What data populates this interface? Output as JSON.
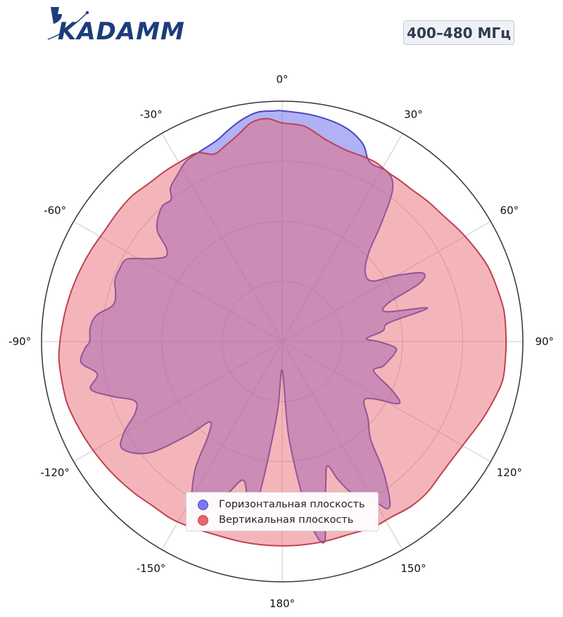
{
  "header": {
    "logo_text": "KADAMM",
    "badge": "400–480 МГц"
  },
  "colors": {
    "horizontal": "#6a6aee",
    "horizontal_line": "#4a46c0",
    "vertical": "#e8646e",
    "vertical_line": "#c04050",
    "logo": "#1c3d7a"
  },
  "chart_data": {
    "type": "polar-area",
    "angle_direction": "clockwise",
    "zero_location": "top",
    "angle_unit": "deg",
    "angle_ticks": [
      0,
      30,
      60,
      90,
      120,
      150,
      180,
      -150,
      -120,
      -90,
      -60,
      -30
    ],
    "angle_tick_labels": [
      "0°",
      "30°",
      "60°",
      "90°",
      "120°",
      "150°",
      "180°",
      "-150°",
      "-120°",
      "-90°",
      "-60°",
      "-30°"
    ],
    "radial_gridlines": 4,
    "rlim": [
      0,
      1
    ],
    "grid": true,
    "legend_position": "bottom-center",
    "series": [
      {
        "name": "Горизонтальная плоскость",
        "points": [
          [
            0,
            0.96
          ],
          [
            8,
            0.95
          ],
          [
            16,
            0.93
          ],
          [
            22,
            0.89
          ],
          [
            26,
            0.83
          ],
          [
            32,
            0.83
          ],
          [
            36,
            0.78
          ],
          [
            40,
            0.64
          ],
          [
            44,
            0.52
          ],
          [
            50,
            0.45
          ],
          [
            56,
            0.45
          ],
          [
            60,
            0.55
          ],
          [
            64,
            0.65
          ],
          [
            67,
            0.62
          ],
          [
            70,
            0.47
          ],
          [
            74,
            0.45
          ],
          [
            77,
            0.62
          ],
          [
            80,
            0.45
          ],
          [
            84,
            0.42
          ],
          [
            88,
            0.35
          ],
          [
            90,
            0.4
          ],
          [
            93,
            0.47
          ],
          [
            96,
            0.47
          ],
          [
            100,
            0.45
          ],
          [
            104,
            0.43
          ],
          [
            108,
            0.4
          ],
          [
            114,
            0.5
          ],
          [
            118,
            0.55
          ],
          [
            122,
            0.45
          ],
          [
            126,
            0.42
          ],
          [
            132,
            0.48
          ],
          [
            138,
            0.55
          ],
          [
            142,
            0.68
          ],
          [
            146,
            0.8
          ],
          [
            148,
            0.82
          ],
          [
            150,
            0.77
          ],
          [
            155,
            0.7
          ],
          [
            158,
            0.62
          ],
          [
            160,
            0.55
          ],
          [
            163,
            0.62
          ],
          [
            166,
            0.74
          ],
          [
            168,
            0.85
          ],
          [
            170,
            0.82
          ],
          [
            172,
            0.7
          ],
          [
            176,
            0.4
          ],
          [
            180,
            0.12
          ],
          [
            184,
            0.3
          ],
          [
            188,
            0.6
          ],
          [
            190,
            0.74
          ],
          [
            193,
            0.65
          ],
          [
            196,
            0.6
          ],
          [
            200,
            0.68
          ],
          [
            205,
            0.8
          ],
          [
            208,
            0.8
          ],
          [
            214,
            0.65
          ],
          [
            218,
            0.5
          ],
          [
            222,
            0.45
          ],
          [
            225,
            0.55
          ],
          [
            230,
            0.72
          ],
          [
            236,
            0.8
          ],
          [
            240,
            0.76
          ],
          [
            244,
            0.68
          ],
          [
            248,
            0.66
          ],
          [
            252,
            0.74
          ],
          [
            256,
            0.82
          ],
          [
            260,
            0.78
          ],
          [
            264,
            0.84
          ],
          [
            268,
            0.82
          ],
          [
            270,
            0.8
          ],
          [
            274,
            0.8
          ],
          [
            278,
            0.78
          ],
          [
            282,
            0.72
          ],
          [
            286,
            0.72
          ],
          [
            290,
            0.74
          ],
          [
            294,
            0.74
          ],
          [
            298,
            0.73
          ],
          [
            302,
            0.65
          ],
          [
            306,
            0.6
          ],
          [
            309,
            0.62
          ],
          [
            312,
            0.7
          ],
          [
            318,
            0.75
          ],
          [
            322,
            0.75
          ],
          [
            324,
            0.79
          ],
          [
            328,
            0.82
          ],
          [
            332,
            0.85
          ],
          [
            336,
            0.86
          ],
          [
            342,
            0.88
          ],
          [
            346,
            0.91
          ],
          [
            350,
            0.94
          ],
          [
            354,
            0.96
          ],
          [
            358,
            0.96
          ]
        ]
      },
      {
        "name": "Вертикальная плоскость",
        "points": [
          [
            0,
            0.91
          ],
          [
            6,
            0.9
          ],
          [
            12,
            0.86
          ],
          [
            18,
            0.84
          ],
          [
            24,
            0.84
          ],
          [
            28,
            0.84
          ],
          [
            32,
            0.83
          ],
          [
            36,
            0.83
          ],
          [
            40,
            0.83
          ],
          [
            46,
            0.84
          ],
          [
            52,
            0.85
          ],
          [
            58,
            0.87
          ],
          [
            64,
            0.89
          ],
          [
            70,
            0.91
          ],
          [
            76,
            0.92
          ],
          [
            82,
            0.93
          ],
          [
            88,
            0.93
          ],
          [
            94,
            0.93
          ],
          [
            100,
            0.93
          ],
          [
            106,
            0.91
          ],
          [
            112,
            0.89
          ],
          [
            118,
            0.87
          ],
          [
            124,
            0.86
          ],
          [
            130,
            0.86
          ],
          [
            136,
            0.87
          ],
          [
            142,
            0.87
          ],
          [
            148,
            0.86
          ],
          [
            154,
            0.86
          ],
          [
            160,
            0.85
          ],
          [
            168,
            0.85
          ],
          [
            174,
            0.85
          ],
          [
            180,
            0.85
          ],
          [
            186,
            0.85
          ],
          [
            192,
            0.85
          ],
          [
            198,
            0.85
          ],
          [
            206,
            0.86
          ],
          [
            212,
            0.87
          ],
          [
            218,
            0.87
          ],
          [
            224,
            0.88
          ],
          [
            230,
            0.89
          ],
          [
            236,
            0.9
          ],
          [
            242,
            0.91
          ],
          [
            248,
            0.92
          ],
          [
            254,
            0.93
          ],
          [
            260,
            0.93
          ],
          [
            266,
            0.93
          ],
          [
            272,
            0.92
          ],
          [
            278,
            0.91
          ],
          [
            284,
            0.9
          ],
          [
            290,
            0.89
          ],
          [
            296,
            0.88
          ],
          [
            302,
            0.87
          ],
          [
            308,
            0.87
          ],
          [
            314,
            0.87
          ],
          [
            320,
            0.86
          ],
          [
            326,
            0.86
          ],
          [
            332,
            0.86
          ],
          [
            336,
            0.86
          ],
          [
            340,
            0.83
          ],
          [
            344,
            0.85
          ],
          [
            348,
            0.88
          ],
          [
            352,
            0.92
          ],
          [
            356,
            0.93
          ]
        ]
      }
    ]
  },
  "legend": {
    "horizontal_label": "Горизонтальная плоскость",
    "vertical_label": "Вертикальная плоскость"
  }
}
